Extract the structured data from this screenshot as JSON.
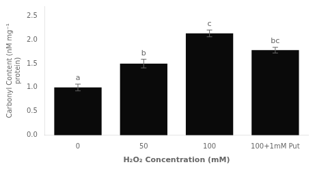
{
  "chart_data": {
    "type": "bar",
    "categories": [
      "0",
      "50",
      "100",
      "100+1mM Put"
    ],
    "values": [
      1.0,
      1.5,
      2.13,
      1.78
    ],
    "errors": [
      0.07,
      0.09,
      0.07,
      0.06
    ],
    "annotations": [
      "a",
      "b",
      "c",
      "bc"
    ],
    "color": "#0a0a0a",
    "xlabel": "H₂O₂ Concentration (mM)",
    "ylabel": "Carbonyl Content (nM mg⁻¹\nprotein)",
    "ylim": [
      0,
      2.7
    ],
    "yticks": [
      {
        "value": 0,
        "label": "0.0"
      },
      0.5,
      {
        "value": 1.0,
        "label": "1.0"
      },
      1.5,
      {
        "value": 2.0,
        "label": "2.0"
      },
      2.5
    ],
    "grid": false
  }
}
